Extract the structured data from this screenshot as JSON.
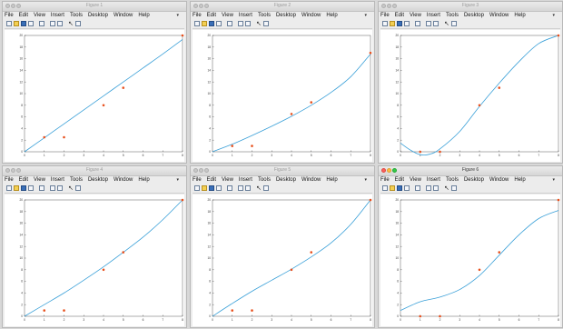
{
  "menu": [
    "File",
    "Edit",
    "View",
    "Insert",
    "Tools",
    "Desktop",
    "Window",
    "Help"
  ],
  "colors": {
    "curve": "#3aa0d8",
    "points": "#e8501d",
    "axes": "#333333"
  },
  "icons": [
    "new-icon",
    "open-icon",
    "save-icon",
    "print-icon",
    "zoom-icon",
    "figure-icon",
    "pan-icon",
    "cursor-icon",
    "data-cursor-icon"
  ],
  "windows": [
    {
      "title": "Figure 1",
      "active": false
    },
    {
      "title": "Figure 2",
      "active": false
    },
    {
      "title": "Figure 3",
      "active": false
    },
    {
      "title": "Figure 4",
      "active": false
    },
    {
      "title": "Figure 5",
      "active": false
    },
    {
      "title": "Figure 6",
      "active": true
    }
  ],
  "chart_data": [
    {
      "type": "line",
      "title": "",
      "xlim": [
        0,
        8
      ],
      "ylim": [
        0,
        20
      ],
      "xticks": [
        "0",
        "1",
        "2",
        "3",
        "4",
        "5",
        "6",
        "7",
        "8"
      ],
      "yticks": [
        "0",
        "2",
        "4",
        "6",
        "8",
        "10",
        "12",
        "14",
        "16",
        "18",
        "20"
      ],
      "points": {
        "x": [
          1,
          2,
          4,
          5,
          8
        ],
        "y": [
          2.5,
          2.5,
          8,
          11,
          20
        ]
      },
      "curve": {
        "x": [
          0,
          1,
          2,
          3,
          4,
          5,
          6,
          7,
          8
        ],
        "y": [
          0,
          2.4,
          4.8,
          7.2,
          9.6,
          12,
          14.4,
          16.8,
          19.3
        ]
      }
    },
    {
      "type": "line",
      "title": "",
      "xlim": [
        0,
        8
      ],
      "ylim": [
        0,
        20
      ],
      "xticks": [
        "0",
        "1",
        "2",
        "3",
        "4",
        "5",
        "6",
        "7",
        "8"
      ],
      "yticks": [
        "0",
        "2",
        "4",
        "6",
        "8",
        "10",
        "12",
        "14",
        "16",
        "18",
        "20"
      ],
      "points": {
        "x": [
          1,
          2,
          4,
          5,
          8
        ],
        "y": [
          1,
          1,
          6.5,
          8.5,
          17
        ]
      },
      "curve": {
        "x": [
          0,
          1,
          2,
          3,
          4,
          5,
          6,
          7,
          8
        ],
        "y": [
          0,
          1.3,
          2.8,
          4.4,
          6.1,
          8,
          10.2,
          12.9,
          16.8
        ]
      }
    },
    {
      "type": "line",
      "title": "",
      "xlim": [
        0,
        8
      ],
      "ylim": [
        0,
        20
      ],
      "xticks": [
        "0",
        "1",
        "2",
        "3",
        "4",
        "5",
        "6",
        "7",
        "8"
      ],
      "yticks": [
        "0",
        "2",
        "4",
        "6",
        "8",
        "10",
        "12",
        "14",
        "16",
        "18",
        "20"
      ],
      "points": {
        "x": [
          1,
          2,
          4,
          5,
          8
        ],
        "y": [
          0,
          0,
          8,
          11,
          20
        ]
      },
      "curve": {
        "x": [
          0,
          0.5,
          1,
          1.5,
          2,
          3,
          4,
          5,
          6,
          7,
          8
        ],
        "y": [
          1.5,
          0.3,
          -0.5,
          -0.4,
          0.5,
          3.5,
          7.8,
          11.8,
          15.5,
          18.6,
          20
        ]
      }
    },
    {
      "type": "line",
      "title": "",
      "xlim": [
        0,
        8
      ],
      "ylim": [
        0,
        20
      ],
      "xticks": [
        "0",
        "1",
        "2",
        "3",
        "4",
        "5",
        "6",
        "7",
        "8"
      ],
      "yticks": [
        "0",
        "2",
        "4",
        "6",
        "8",
        "10",
        "12",
        "14",
        "16",
        "18",
        "20"
      ],
      "points": {
        "x": [
          1,
          2,
          4,
          5,
          8
        ],
        "y": [
          1,
          1,
          8,
          11,
          20
        ]
      },
      "curve": {
        "x": [
          0,
          1,
          2,
          3,
          4,
          5,
          6,
          7,
          8
        ],
        "y": [
          0,
          2,
          4,
          6.2,
          8.5,
          11,
          13.6,
          16.6,
          20
        ]
      }
    },
    {
      "type": "line",
      "title": "",
      "xlim": [
        0,
        8
      ],
      "ylim": [
        0,
        20
      ],
      "xticks": [
        "0",
        "1",
        "2",
        "3",
        "4",
        "5",
        "6",
        "7",
        "8"
      ],
      "yticks": [
        "0",
        "2",
        "4",
        "6",
        "8",
        "10",
        "12",
        "14",
        "16",
        "18",
        "20"
      ],
      "points": {
        "x": [
          1,
          2,
          4,
          5,
          8
        ],
        "y": [
          1,
          1,
          8,
          11,
          20
        ]
      },
      "curve": {
        "x": [
          0,
          1,
          2,
          3,
          4,
          5,
          6,
          7,
          8
        ],
        "y": [
          0,
          2.2,
          4.3,
          6.2,
          8.1,
          10.2,
          12.6,
          15.8,
          20
        ]
      }
    },
    {
      "type": "line",
      "title": "",
      "xlim": [
        0,
        8
      ],
      "ylim": [
        0,
        20
      ],
      "xticks": [
        "0",
        "1",
        "2",
        "3",
        "4",
        "5",
        "6",
        "7",
        "8"
      ],
      "yticks": [
        "0",
        "2",
        "4",
        "6",
        "8",
        "10",
        "12",
        "14",
        "16",
        "18",
        "20"
      ],
      "points": {
        "x": [
          1,
          2,
          4,
          5,
          8
        ],
        "y": [
          0,
          0,
          8,
          11,
          20
        ]
      },
      "curve": {
        "x": [
          0,
          1,
          2,
          3,
          4,
          5,
          6,
          7,
          8
        ],
        "y": [
          1,
          2.5,
          3.3,
          4.6,
          7,
          10.5,
          14,
          16.8,
          18.2
        ]
      }
    }
  ]
}
